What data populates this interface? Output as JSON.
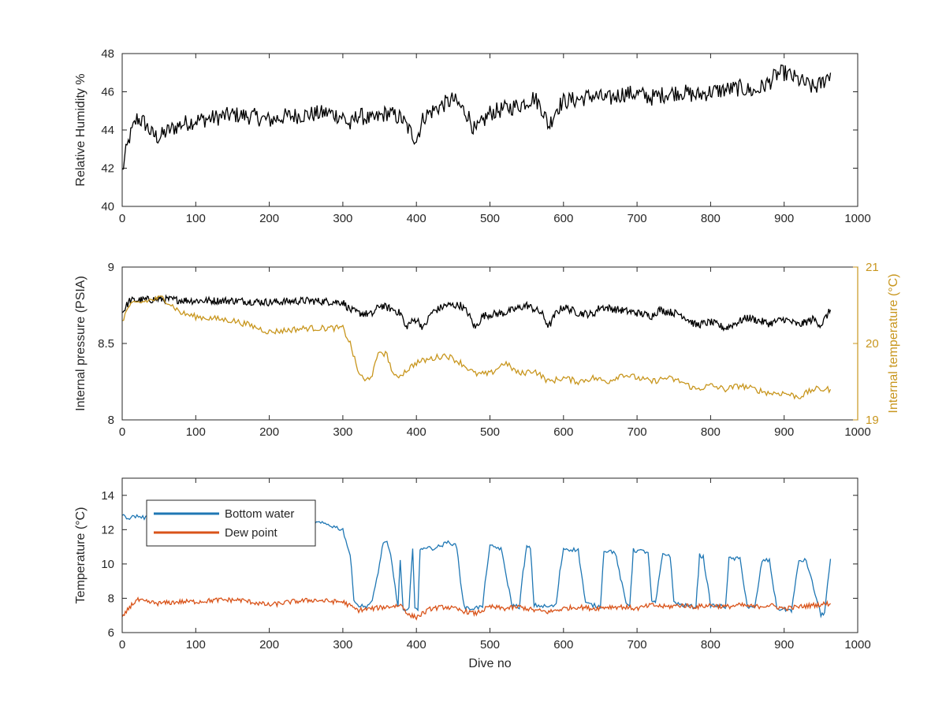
{
  "chart_data": [
    {
      "type": "line",
      "xlabel": "",
      "ylabel": "Relative Humidity %",
      "xlim": [
        0,
        1000
      ],
      "ylim": [
        40,
        48
      ],
      "xticks": [
        "0",
        "100",
        "200",
        "300",
        "400",
        "500",
        "600",
        "700",
        "800",
        "900",
        "1000"
      ],
      "yticks": [
        "40",
        "42",
        "44",
        "46",
        "48"
      ],
      "grid": false,
      "colors": {
        "series": "#000000"
      },
      "series": [
        {
          "name": "",
          "x": [
            0,
            5,
            10,
            15,
            20,
            30,
            40,
            50,
            60,
            80,
            100,
            120,
            150,
            180,
            200,
            220,
            250,
            280,
            300,
            310,
            320,
            340,
            360,
            380,
            390,
            400,
            410,
            430,
            450,
            470,
            480,
            490,
            500,
            520,
            540,
            560,
            570,
            580,
            590,
            600,
            620,
            640,
            660,
            680,
            700,
            720,
            740,
            760,
            780,
            800,
            820,
            840,
            860,
            880,
            890,
            900,
            920,
            940,
            950,
            963
          ],
          "y": [
            41.8,
            42.8,
            43.6,
            44.1,
            44.6,
            44.4,
            43.8,
            43.6,
            43.9,
            44.3,
            44.5,
            44.6,
            44.8,
            44.7,
            44.5,
            44.7,
            44.8,
            44.9,
            44.7,
            44.2,
            44.8,
            44.5,
            44.9,
            44.6,
            44.0,
            43.5,
            44.7,
            45.2,
            45.6,
            44.8,
            43.9,
            44.4,
            44.9,
            45.1,
            45.3,
            45.7,
            45.2,
            44.2,
            45.1,
            45.5,
            45.6,
            45.8,
            45.6,
            45.9,
            45.9,
            45.7,
            45.9,
            46.0,
            45.8,
            46.0,
            46.1,
            46.2,
            46.0,
            46.5,
            46.9,
            47.0,
            46.6,
            46.2,
            46.4,
            47.0
          ]
        }
      ]
    },
    {
      "type": "line",
      "xlabel": "",
      "ylabel": "Internal pressure (PSIA)",
      "y2label": "Internal temperature (°C)",
      "xlim": [
        0,
        1000
      ],
      "ylim": [
        8,
        9
      ],
      "y2lim": [
        19,
        21
      ],
      "xticks": [
        "0",
        "100",
        "200",
        "300",
        "400",
        "500",
        "600",
        "700",
        "800",
        "900",
        "1000"
      ],
      "yticks": [
        "8",
        "8.5",
        "9"
      ],
      "y2ticks": [
        "19",
        "20",
        "21"
      ],
      "grid": false,
      "colors": {
        "pressure": "#000000",
        "temperature": "#C8961E",
        "right_axis": "#C8961E"
      },
      "series": [
        {
          "name": "",
          "axis": "left",
          "x": [
            0,
            10,
            50,
            100,
            150,
            200,
            250,
            300,
            310,
            320,
            340,
            350,
            370,
            380,
            385,
            390,
            400,
            410,
            420,
            440,
            460,
            470,
            480,
            490,
            500,
            520,
            550,
            570,
            580,
            590,
            600,
            620,
            640,
            650,
            700,
            720,
            730,
            760,
            780,
            800,
            820,
            850,
            880,
            900,
            920,
            940,
            950,
            963
          ],
          "y": [
            8.7,
            8.78,
            8.79,
            8.78,
            8.78,
            8.77,
            8.78,
            8.77,
            8.72,
            8.7,
            8.69,
            8.75,
            8.72,
            8.69,
            8.6,
            8.63,
            8.66,
            8.6,
            8.7,
            8.75,
            8.75,
            8.7,
            8.6,
            8.68,
            8.69,
            8.7,
            8.75,
            8.7,
            8.61,
            8.7,
            8.74,
            8.7,
            8.69,
            8.74,
            8.7,
            8.68,
            8.72,
            8.69,
            8.62,
            8.64,
            8.6,
            8.67,
            8.63,
            8.66,
            8.62,
            8.66,
            8.62,
            8.72
          ]
        },
        {
          "name": "",
          "axis": "right",
          "x": [
            0,
            10,
            30,
            55,
            80,
            100,
            150,
            170,
            200,
            250,
            300,
            310,
            320,
            330,
            340,
            350,
            360,
            370,
            380,
            400,
            420,
            440,
            460,
            480,
            500,
            520,
            540,
            560,
            580,
            600,
            620,
            640,
            660,
            680,
            700,
            720,
            740,
            760,
            780,
            800,
            820,
            840,
            860,
            880,
            900,
            920,
            940,
            963
          ],
          "y": [
            20.3,
            20.5,
            20.55,
            20.6,
            20.4,
            20.35,
            20.3,
            20.25,
            20.15,
            20.2,
            20.2,
            20.0,
            19.65,
            19.5,
            19.6,
            19.9,
            19.85,
            19.55,
            19.6,
            19.75,
            19.8,
            19.85,
            19.75,
            19.6,
            19.6,
            19.75,
            19.6,
            19.65,
            19.5,
            19.55,
            19.5,
            19.55,
            19.5,
            19.6,
            19.55,
            19.5,
            19.55,
            19.5,
            19.4,
            19.45,
            19.4,
            19.45,
            19.4,
            19.35,
            19.35,
            19.3,
            19.4,
            19.4
          ]
        }
      ]
    },
    {
      "type": "line",
      "xlabel": "Dive no",
      "ylabel": "Temperature (°C)",
      "xlim": [
        0,
        1000
      ],
      "ylim": [
        6,
        15
      ],
      "xticks": [
        "0",
        "100",
        "200",
        "300",
        "400",
        "500",
        "600",
        "700",
        "800",
        "900",
        "1000"
      ],
      "yticks": [
        "6",
        "8",
        "10",
        "12",
        "14"
      ],
      "grid": false,
      "legend": "top-left",
      "colors": {
        "bottom_water": "#1F77B4",
        "dew_point": "#D95319"
      },
      "series": [
        {
          "name": "Bottom water",
          "x": [
            0,
            10,
            20,
            30,
            60,
            100,
            150,
            200,
            250,
            280,
            300,
            310,
            315,
            320,
            330,
            340,
            350,
            355,
            360,
            365,
            375,
            378,
            382,
            386,
            390,
            395,
            398,
            402,
            405,
            410,
            420,
            430,
            445,
            455,
            460,
            465,
            470,
            490,
            495,
            500,
            505,
            515,
            530,
            540,
            545,
            550,
            555,
            560,
            580,
            590,
            595,
            600,
            620,
            630,
            640,
            650,
            655,
            670,
            685,
            690,
            695,
            715,
            720,
            725,
            735,
            745,
            750,
            760,
            780,
            785,
            790,
            800,
            820,
            825,
            840,
            850,
            860,
            870,
            880,
            890,
            910,
            920,
            930,
            950,
            955,
            963
          ],
          "y": [
            12.8,
            12.7,
            12.8,
            12.7,
            12.7,
            12.6,
            12.6,
            12.6,
            12.5,
            12.3,
            12.0,
            10.5,
            8.0,
            7.6,
            7.5,
            7.8,
            10.0,
            11.3,
            11.2,
            10.5,
            7.5,
            10.3,
            7.3,
            7.2,
            7.4,
            11.0,
            7.5,
            7.3,
            10.8,
            11.0,
            10.9,
            11.0,
            11.3,
            11.0,
            9.0,
            7.5,
            7.4,
            7.5,
            9.5,
            11.0,
            11.0,
            10.9,
            7.6,
            7.5,
            9.5,
            11.0,
            10.9,
            7.6,
            7.5,
            7.6,
            9.5,
            10.9,
            10.8,
            7.7,
            7.6,
            7.5,
            10.8,
            10.7,
            7.7,
            7.6,
            10.8,
            10.7,
            7.8,
            7.7,
            10.6,
            10.5,
            7.8,
            7.6,
            7.5,
            10.5,
            10.4,
            7.6,
            7.5,
            10.3,
            10.3,
            7.5,
            7.4,
            10.2,
            10.2,
            7.4,
            7.3,
            10.2,
            10.2,
            7.0,
            7.2,
            10.3
          ]
        },
        {
          "name": "Dew point",
          "x": [
            0,
            10,
            20,
            30,
            50,
            80,
            100,
            130,
            160,
            200,
            230,
            260,
            290,
            300,
            320,
            340,
            360,
            380,
            390,
            400,
            420,
            440,
            460,
            480,
            500,
            520,
            540,
            560,
            580,
            600,
            620,
            640,
            660,
            680,
            700,
            720,
            740,
            760,
            780,
            800,
            820,
            840,
            860,
            880,
            900,
            920,
            940,
            963
          ],
          "y": [
            6.8,
            7.5,
            7.9,
            7.8,
            7.7,
            7.8,
            7.8,
            7.9,
            7.9,
            7.6,
            7.8,
            7.9,
            7.8,
            7.8,
            7.3,
            7.4,
            7.5,
            7.6,
            7.0,
            6.9,
            7.4,
            7.5,
            7.3,
            7.1,
            7.5,
            7.4,
            7.5,
            7.3,
            7.2,
            7.4,
            7.5,
            7.4,
            7.5,
            7.5,
            7.4,
            7.6,
            7.5,
            7.6,
            7.5,
            7.6,
            7.5,
            7.6,
            7.5,
            7.6,
            7.4,
            7.5,
            7.6,
            7.7
          ]
        }
      ]
    }
  ]
}
